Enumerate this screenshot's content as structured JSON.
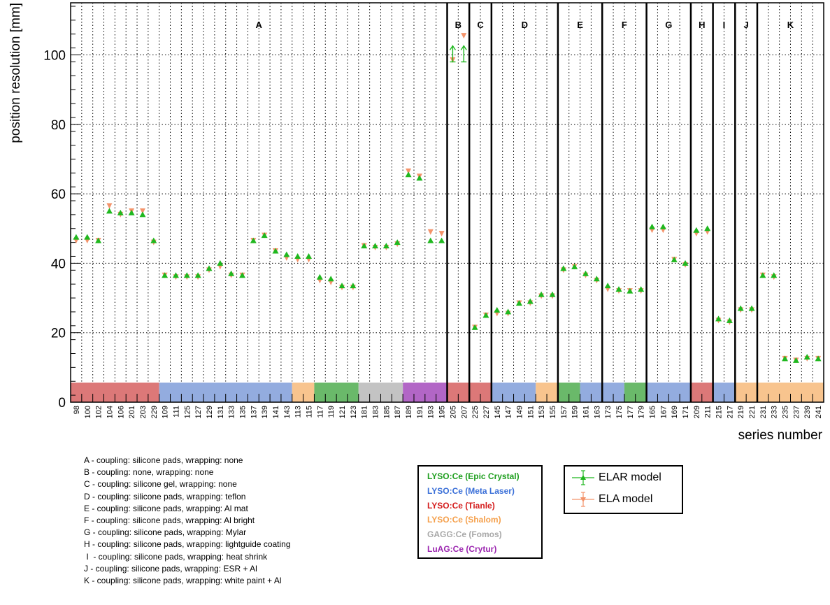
{
  "chart_data": {
    "type": "scatter",
    "xlabel": "series number",
    "ylabel": "position resolution [mm]",
    "yticks": [
      0,
      20,
      40,
      60,
      80,
      100
    ],
    "ylim": [
      0,
      115
    ],
    "grid": true,
    "categories": [
      "98",
      "100",
      "102",
      "104",
      "106",
      "201",
      "203",
      "229",
      "109",
      "111",
      "125",
      "127",
      "129",
      "131",
      "133",
      "135",
      "137",
      "139",
      "141",
      "143",
      "113",
      "115",
      "117",
      "119",
      "121",
      "123",
      "181",
      "183",
      "185",
      "187",
      "189",
      "191",
      "193",
      "195",
      "205",
      "207",
      "225",
      "227",
      "145",
      "147",
      "149",
      "151",
      "153",
      "155",
      "157",
      "159",
      "161",
      "163",
      "173",
      "175",
      "177",
      "179",
      "165",
      "167",
      "169",
      "171",
      "209",
      "211",
      "215",
      "217",
      "219",
      "221",
      "231",
      "233",
      "235",
      "237",
      "239",
      "241"
    ],
    "series": [
      {
        "name": "ELAR model",
        "color": "#1fb81f",
        "marker": "triangle-up",
        "values": [
          47.5,
          47.5,
          46.5,
          55,
          54.5,
          54.5,
          54,
          46.5,
          36.5,
          36.5,
          36.5,
          36.5,
          38.5,
          40,
          37,
          36.5,
          46.5,
          48,
          43.5,
          42.5,
          42,
          42,
          36,
          35.5,
          33.5,
          33.5,
          45,
          45,
          45,
          46,
          65.5,
          64.5,
          46.5,
          46.5,
          100,
          100,
          21.5,
          25,
          26.5,
          26,
          28.5,
          29,
          31,
          31,
          38.5,
          39,
          37,
          35.5,
          33.5,
          32.5,
          32,
          32.5,
          50.5,
          50.5,
          41,
          40,
          49.5,
          50,
          24,
          23.5,
          27,
          27,
          36.5,
          36.5,
          12.5,
          12,
          13,
          12.5
        ],
        "lower_limit_arrows": [
          "205",
          "207"
        ]
      },
      {
        "name": "ELA model",
        "color": "#f4936a",
        "marker": "triangle-down",
        "values": [
          46.5,
          46.5,
          46.5,
          56.5,
          54,
          55,
          55,
          46,
          36.5,
          36,
          36,
          36,
          38,
          39,
          36.5,
          36.5,
          46.5,
          48,
          43.5,
          41.5,
          41,
          41,
          35,
          34.5,
          33,
          33,
          45,
          44.5,
          44.5,
          45.5,
          66.5,
          65,
          49,
          48.5,
          98.5,
          105.5,
          21.5,
          25,
          25.5,
          25.5,
          28.5,
          28.5,
          30.5,
          30.5,
          38,
          39,
          36.5,
          35,
          32.5,
          32,
          32,
          32,
          49.5,
          49.5,
          41,
          39.5,
          48.5,
          49,
          23.5,
          23,
          26.5,
          26.5,
          36.5,
          36,
          12.5,
          12,
          12.5,
          12.5
        ]
      }
    ],
    "groups": [
      {
        "label": "A",
        "start": 0,
        "end": 33
      },
      {
        "label": "B",
        "start": 34,
        "end": 35
      },
      {
        "label": "C",
        "start": 36,
        "end": 37
      },
      {
        "label": "D",
        "start": 38,
        "end": 43
      },
      {
        "label": "E",
        "start": 44,
        "end": 47
      },
      {
        "label": "F",
        "start": 48,
        "end": 51
      },
      {
        "label": "G",
        "start": 52,
        "end": 55
      },
      {
        "label": "H",
        "start": 56,
        "end": 57
      },
      {
        "label": "I",
        "start": 58,
        "end": 59
      },
      {
        "label": "J",
        "start": 60,
        "end": 61
      },
      {
        "label": "K",
        "start": 62,
        "end": 67
      }
    ],
    "material_bands": [
      {
        "material": "Tianle",
        "start": 0,
        "end": 7
      },
      {
        "material": "Meta Laser",
        "start": 8,
        "end": 19
      },
      {
        "material": "Shalom",
        "start": 20,
        "end": 21
      },
      {
        "material": "Epic Crystal",
        "start": 22,
        "end": 25
      },
      {
        "material": "Fomos",
        "start": 26,
        "end": 29
      },
      {
        "material": "Crytur",
        "start": 30,
        "end": 33
      },
      {
        "material": "Tianle",
        "start": 34,
        "end": 37
      },
      {
        "material": "Meta Laser",
        "start": 38,
        "end": 41
      },
      {
        "material": "Shalom",
        "start": 42,
        "end": 43
      },
      {
        "material": "Epic Crystal",
        "start": 44,
        "end": 45
      },
      {
        "material": "Meta Laser",
        "start": 46,
        "end": 49
      },
      {
        "material": "Epic Crystal",
        "start": 50,
        "end": 51
      },
      {
        "material": "Meta Laser",
        "start": 52,
        "end": 55
      },
      {
        "material": "Tianle",
        "start": 56,
        "end": 57
      },
      {
        "material": "Meta Laser",
        "start": 58,
        "end": 59
      },
      {
        "material": "Shalom",
        "start": 60,
        "end": 67
      }
    ],
    "material_colors": {
      "Epic Crystal": "#6ab96a",
      "Meta Laser": "#93acdf",
      "Tianle": "#dc7878",
      "Shalom": "#f8c48e",
      "Fomos": "#c3c3c3",
      "Crytur": "#b266c6"
    }
  },
  "group_legend": [
    "A - coupling: silicone pads, wrapping: none",
    "B - coupling: none, wrapping: none",
    "C - coupling: silicone gel, wrapping: none",
    "D - coupling: silicone pads, wrapping: teflon",
    "E - coupling: silicone pads, wrapping: Al mat",
    "F - coupling: silicone pads, wrapping: Al bright",
    "G - coupling: silicone pads, wrapping: Mylar",
    "H - coupling: silicone pads, wrapping: lightguide coating",
    " I  - coupling: silicone pads, wrapping: heat shrink",
    "J - coupling: silicone pads, wrapping: ESR + Al",
    "K - coupling: silicone pads, wrapping: white paint + Al"
  ],
  "material_legend": [
    {
      "label": "LYSO:Ce (Epic Crystal)",
      "color": "#1f9f1f"
    },
    {
      "label": "LYSO:Ce (Meta Laser)",
      "color": "#3a6fd8"
    },
    {
      "label": "LYSO:Ce (Tianle)",
      "color": "#d41c1c"
    },
    {
      "label": "LYSO:Ce (Shalom)",
      "color": "#f5a04c"
    },
    {
      "label": "GAGG:Ce (Fomos)",
      "color": "#a8a8a8"
    },
    {
      "label": "LuAG:Ce (Crytur)",
      "color": "#9c27b0"
    }
  ],
  "model_legend": [
    {
      "label": "ELAR model",
      "color": "#1fb81f"
    },
    {
      "label": "ELA model",
      "color": "#f4936a"
    }
  ]
}
